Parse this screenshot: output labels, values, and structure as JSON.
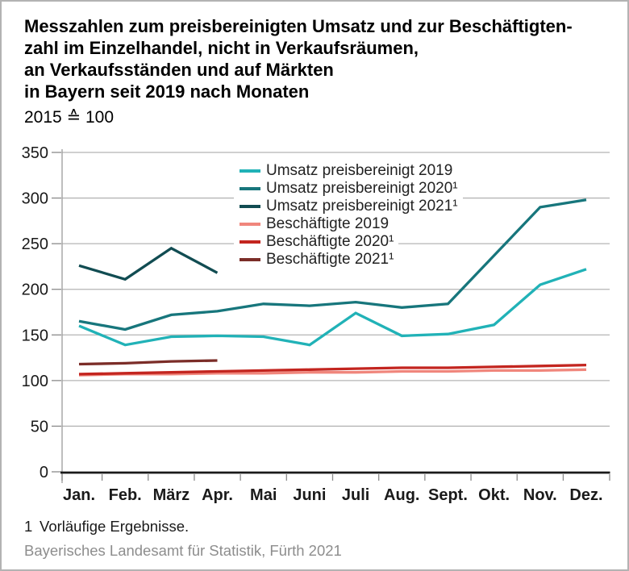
{
  "header": {
    "title_lines": [
      "Messzahlen zum preisbereinigten Umsatz und zur Beschäftigten-",
      "zahl im Einzelhandel, nicht in Verkaufsräumen,",
      "an Verkaufsständen und auf Märkten",
      "in Bayern seit 2019 nach Monaten"
    ],
    "subtitle": "2015 ≙ 100"
  },
  "chart_data": {
    "type": "line",
    "categories": [
      "Jan.",
      "Feb.",
      "März",
      "Apr.",
      "Mai",
      "Juni",
      "Juli",
      "Aug.",
      "Sept.",
      "Okt.",
      "Nov.",
      "Dez."
    ],
    "xlabel": "",
    "ylabel": "",
    "ylim": [
      0,
      350
    ],
    "ytick_step": 50,
    "ytick_labels": [
      "0",
      "50",
      "100",
      "150",
      "200",
      "250",
      "300",
      "350"
    ],
    "grid": true,
    "legend_position": "inside-top-center",
    "series": [
      {
        "name": "Umsatz preisbereinigt 2019",
        "color": "#21b2b7",
        "values": [
          160,
          139,
          148,
          149,
          148,
          139,
          174,
          149,
          151,
          161,
          205,
          222
        ]
      },
      {
        "name": "Umsatz preisbereinigt 2020¹",
        "color": "#17767c",
        "values": [
          165,
          156,
          172,
          176,
          184,
          182,
          186,
          180,
          184,
          237,
          290,
          298
        ]
      },
      {
        "name": "Umsatz preisbereinigt 2021¹",
        "color": "#114c52",
        "values": [
          226,
          211,
          245,
          218
        ]
      },
      {
        "name": "Beschäftigte 2019",
        "color": "#f0867c",
        "values": [
          106,
          107,
          107,
          108,
          108,
          109,
          109,
          110,
          110,
          111,
          111,
          112
        ]
      },
      {
        "name": "Beschäftigte 2020¹",
        "color": "#c3251f",
        "values": [
          107,
          108,
          109,
          110,
          111,
          112,
          113,
          114,
          114,
          115,
          116,
          117
        ]
      },
      {
        "name": "Beschäftigte 2021¹",
        "color": "#7b2d28",
        "values": [
          118,
          119,
          121,
          122
        ]
      }
    ]
  },
  "footnote": {
    "marker": "1",
    "text": "Vorläufige Ergebnisse."
  },
  "source": "Bayerisches Landesamt für Statistik, Fürth 2021",
  "style": {
    "grid_color": "#b5b5b5",
    "axis_color": "#9a9a9a",
    "tick_color": "#8a8a8a",
    "baseline_color": "#1a1a1a",
    "text_color": "#1a1a1a",
    "source_color": "#8d8d8d"
  }
}
